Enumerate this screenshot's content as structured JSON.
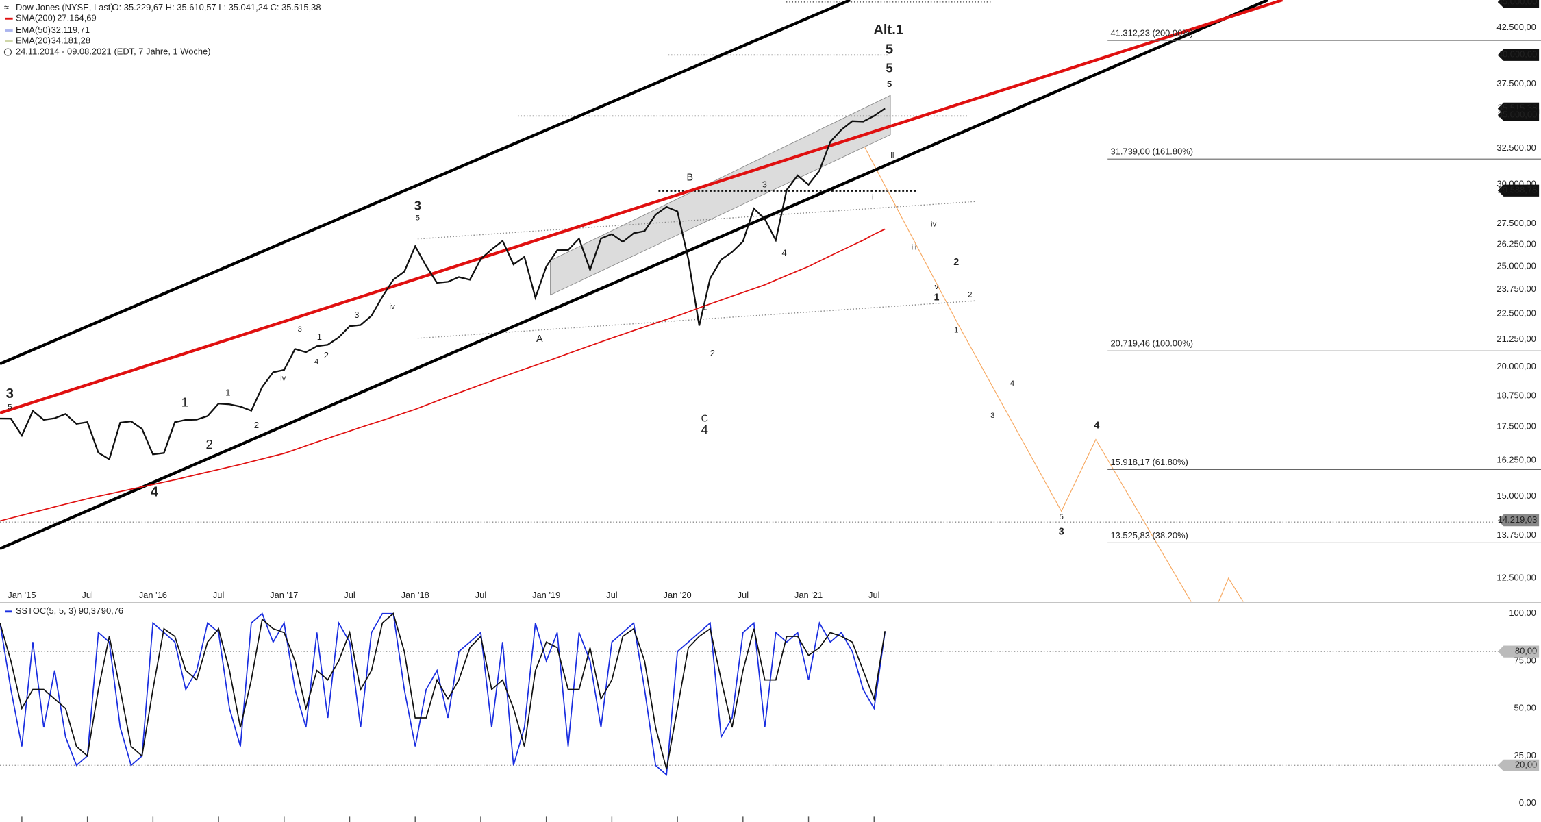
{
  "header": {
    "instrument": "Dow Jones (NYSE, Last)",
    "ohlc": "O: 35.229,67  H: 35.610,57  L: 35.041,24  C: 35.515,38",
    "range": "24.11.2014 - 09.08.2021",
    "info": "(EDT, 7 Jahre, 1 Woche)"
  },
  "chart_data": [
    {
      "type": "line",
      "log_scale": true,
      "x": [
        "2014-11",
        "2014-12",
        "2015-01",
        "2015-02",
        "2015-03",
        "2015-04",
        "2015-05",
        "2015-06",
        "2015-07",
        "2015-08",
        "2015-09",
        "2015-10",
        "2015-11",
        "2015-12",
        "2016-01",
        "2016-02",
        "2016-03",
        "2016-04",
        "2016-05",
        "2016-06",
        "2016-07",
        "2016-08",
        "2016-09",
        "2016-10",
        "2016-11",
        "2016-12",
        "2017-01",
        "2017-02",
        "2017-03",
        "2017-04",
        "2017-05",
        "2017-06",
        "2017-07",
        "2017-08",
        "2017-09",
        "2017-10",
        "2017-11",
        "2017-12",
        "2018-01",
        "2018-02",
        "2018-03",
        "2018-04",
        "2018-05",
        "2018-06",
        "2018-07",
        "2018-08",
        "2018-09",
        "2018-10",
        "2018-11",
        "2018-12",
        "2019-01",
        "2019-02",
        "2019-03",
        "2019-04",
        "2019-05",
        "2019-06",
        "2019-07",
        "2019-08",
        "2019-09",
        "2019-10",
        "2019-11",
        "2019-12",
        "2020-01",
        "2020-02",
        "2020-03",
        "2020-04",
        "2020-05",
        "2020-06",
        "2020-07",
        "2020-08",
        "2020-09",
        "2020-10",
        "2020-11",
        "2020-12",
        "2021-01",
        "2021-02",
        "2021-03",
        "2021-04",
        "2021-05",
        "2021-06",
        "2021-07",
        "2021-08"
      ],
      "series": [
        {
          "name": "Dow Jones (NYSE, Last)",
          "color": "#111111",
          "values": [
            17828,
            17823,
            17165,
            18133,
            17776,
            17841,
            18011,
            17620,
            17690,
            16528,
            16285,
            17664,
            17720,
            17425,
            16466,
            16517,
            17685,
            17774,
            17787,
            17930,
            18432,
            18401,
            18308,
            18142,
            19124,
            19763,
            19864,
            20812,
            20663,
            20941,
            21009,
            21350,
            21891,
            21948,
            22405,
            23377,
            24272,
            24719,
            26149,
            25029,
            24103,
            24163,
            24416,
            24271,
            25415,
            25965,
            26458,
            25116,
            25538,
            23327,
            24999,
            25916,
            25929,
            26593,
            24815,
            26600,
            26864,
            26403,
            26917,
            27046,
            28051,
            28538,
            28256,
            25409,
            21917,
            24346,
            25383,
            25813,
            26428,
            28430,
            27782,
            26502,
            29639,
            30606,
            29983,
            30932,
            32982,
            33875,
            34529,
            34503,
            34935,
            35515.38
          ]
        },
        {
          "name": "SMA(200)",
          "color": "#e01010",
          "last_label": "27.164,69",
          "values": [
            14200,
            14290,
            14380,
            14470,
            14560,
            14650,
            14740,
            14830,
            14920,
            15000,
            15080,
            15160,
            15240,
            15320,
            15400,
            15480,
            15560,
            15650,
            15740,
            15830,
            15920,
            16010,
            16100,
            16200,
            16300,
            16400,
            16500,
            16640,
            16780,
            16920,
            17060,
            17200,
            17340,
            17480,
            17620,
            17760,
            17900,
            18050,
            18200,
            18370,
            18540,
            18710,
            18880,
            19050,
            19220,
            19390,
            19560,
            19730,
            19900,
            20070,
            20240,
            20420,
            20600,
            20780,
            20960,
            21140,
            21320,
            21500,
            21680,
            21860,
            22040,
            22220,
            22400,
            22600,
            22800,
            23000,
            23200,
            23400,
            23600,
            23800,
            24000,
            24250,
            24500,
            24750,
            25000,
            25300,
            25600,
            25900,
            26200,
            26500,
            26850,
            27164.69
          ]
        }
      ],
      "legend_extra": [
        {
          "name": "EMA(50)",
          "label": "32.119,71",
          "color": "#aab4ee"
        },
        {
          "name": "EMA(20)",
          "label": "34.181,28",
          "color": "#cfd6a8"
        }
      ],
      "xlim": [
        "2014-11",
        "2026-03"
      ],
      "xticks": [
        {
          "value": "2015-01",
          "label": "Jan '15"
        },
        {
          "value": "2015-07",
          "label": "Jul"
        },
        {
          "value": "2016-01",
          "label": "Jan '16"
        },
        {
          "value": "2016-07",
          "label": "Jul"
        },
        {
          "value": "2017-01",
          "label": "Jan '17"
        },
        {
          "value": "2017-07",
          "label": "Jul"
        },
        {
          "value": "2018-01",
          "label": "Jan '18"
        },
        {
          "value": "2018-07",
          "label": "Jul"
        },
        {
          "value": "2019-01",
          "label": "Jan '19"
        },
        {
          "value": "2019-07",
          "label": "Jul"
        },
        {
          "value": "2020-01",
          "label": "Jan '20"
        },
        {
          "value": "2020-07",
          "label": "Jul"
        },
        {
          "value": "2021-01",
          "label": "Jan '21"
        },
        {
          "value": "2021-07",
          "label": "Jul"
        }
      ],
      "ylim": [
        11840,
        45000
      ],
      "yticks": [
        {
          "value": 42500,
          "label": "42.500,00"
        },
        {
          "value": 37500,
          "label": "37.500,00"
        },
        {
          "value": 32500,
          "label": "32.500,00"
        },
        {
          "value": 30000,
          "label": "30.000,00"
        },
        {
          "value": 27500,
          "label": "27.500,00"
        },
        {
          "value": 26250,
          "label": "26.250,00"
        },
        {
          "value": 25000,
          "label": "25.000,00"
        },
        {
          "value": 23750,
          "label": "23.750,00"
        },
        {
          "value": 22500,
          "label": "22.500,00"
        },
        {
          "value": 21250,
          "label": "21.250,00"
        },
        {
          "value": 20000,
          "label": "20.000,00"
        },
        {
          "value": 18750,
          "label": "18.750,00"
        },
        {
          "value": 17500,
          "label": "17.500,00"
        },
        {
          "value": 16250,
          "label": "16.250,00"
        },
        {
          "value": 15000,
          "label": "15.000,00"
        },
        {
          "value": 13750,
          "label": "13.750,00"
        },
        {
          "value": 12500,
          "label": "12.500,00"
        }
      ],
      "price_tags": [
        {
          "value": 45000,
          "label": "45.000,00",
          "color": "#111111"
        },
        {
          "value": 40000,
          "label": "40.000,00",
          "color": "#111111"
        },
        {
          "value": 35515.38,
          "label": "35.515,38",
          "color": "#111111"
        },
        {
          "value": 35000,
          "label": "35.000,00",
          "color": "#111111"
        },
        {
          "value": 29588.78,
          "label": "29.588,78",
          "color": "#111111"
        },
        {
          "value": 14219.03,
          "label": "14.219,03",
          "color": "#888888"
        }
      ],
      "levels": [
        {
          "value": 41312.23,
          "label": "41.312,23 (200.00%)"
        },
        {
          "value": 31739,
          "label": "31.739,00 (161.80%)"
        },
        {
          "value": 20719.46,
          "label": "20.719,46 (100.00%)"
        },
        {
          "value": 15918.17,
          "label": "15.918,17 (61.80%)"
        },
        {
          "value": 13525.83,
          "label": "13.525,83 (38.20%)"
        }
      ],
      "annotations": [
        {
          "text": "3",
          "color": "#1a2ecc"
        },
        {
          "text": "5",
          "color": "#1a8a1a"
        },
        {
          "text": "4",
          "color": "#1a2ecc"
        },
        {
          "text": "1",
          "color": "#e020c0"
        },
        {
          "text": "2",
          "color": "#e020c0"
        },
        {
          "text": "1",
          "color": "#1a8a1a"
        },
        {
          "text": "2",
          "color": "#1a8a1a"
        },
        {
          "text": "3",
          "color": "#1a8a1a"
        },
        {
          "text": "iv",
          "color": "#111111"
        },
        {
          "text": "1",
          "color": "#111111"
        },
        {
          "text": "2",
          "color": "#111111"
        },
        {
          "text": "4",
          "color": "#1a8a1a"
        },
        {
          "text": "3",
          "color": "#111111"
        },
        {
          "text": "iv",
          "color": "#1a2ecc"
        },
        {
          "text": "3",
          "color": "#e020c0"
        },
        {
          "text": "5",
          "color": "#111111"
        },
        {
          "text": "A",
          "color": "#111111"
        },
        {
          "text": "B",
          "color": "#111111"
        },
        {
          "text": "C",
          "color": "#111111"
        },
        {
          "text": "4",
          "color": "#e020c0"
        },
        {
          "text": "1",
          "color": "#111111"
        },
        {
          "text": "2",
          "color": "#111111"
        },
        {
          "text": "3",
          "color": "#111111"
        },
        {
          "text": "4",
          "color": "#111111"
        },
        {
          "text": "Alt.1",
          "color": "#111111"
        },
        {
          "text": "5",
          "color": "#1a2ecc"
        },
        {
          "text": "5",
          "color": "#e020c0"
        },
        {
          "text": "5",
          "color": "#111111"
        },
        {
          "text": "ii",
          "color": "#6677dd"
        },
        {
          "text": "i",
          "color": "#6677dd"
        },
        {
          "text": "iv",
          "color": "#6677dd"
        },
        {
          "text": "iii",
          "color": "#6677dd"
        },
        {
          "text": "v",
          "color": "#6677dd"
        },
        {
          "text": "2",
          "color": "#f0900a"
        },
        {
          "text": "1",
          "color": "#f0900a"
        },
        {
          "text": "2",
          "color": "#111111"
        },
        {
          "text": "1",
          "color": "#111111"
        },
        {
          "text": "4",
          "color": "#111111"
        },
        {
          "text": "3",
          "color": "#111111"
        },
        {
          "text": "5",
          "color": "#111111"
        },
        {
          "text": "4",
          "color": "#f0900a"
        },
        {
          "text": "3",
          "color": "#f0900a"
        }
      ]
    },
    {
      "type": "line",
      "series": [
        {
          "name": "SSTOC(5, 5, 3)",
          "color": "#1a2ee0",
          "last_label": "90,37",
          "values": [
            95,
            60,
            30,
            85,
            40,
            70,
            35,
            20,
            25,
            90,
            85,
            40,
            20,
            25,
            95,
            90,
            85,
            60,
            70,
            95,
            90,
            50,
            30,
            95,
            100,
            85,
            95,
            60,
            40,
            90,
            45,
            95,
            85,
            40,
            90,
            100,
            100,
            60,
            30,
            60,
            70,
            45,
            80,
            85,
            90,
            40,
            85,
            20,
            40,
            95,
            75,
            90,
            30,
            90,
            75,
            40,
            85,
            90,
            95,
            60,
            20,
            15,
            80,
            85,
            90,
            95,
            35,
            45,
            90,
            95,
            40,
            90,
            85,
            90,
            65,
            95,
            85,
            90,
            80,
            60,
            50,
            90.37
          ]
        },
        {
          "color": "#111111",
          "last_label": "90,76",
          "values": [
            95,
            75,
            50,
            60,
            60,
            55,
            50,
            30,
            25,
            60,
            88,
            60,
            30,
            25,
            60,
            92,
            88,
            70,
            65,
            85,
            92,
            70,
            40,
            65,
            97,
            92,
            90,
            75,
            50,
            70,
            65,
            75,
            90,
            60,
            70,
            95,
            100,
            80,
            45,
            45,
            65,
            55,
            65,
            82,
            88,
            60,
            65,
            50,
            30,
            70,
            85,
            82,
            60,
            60,
            82,
            55,
            65,
            88,
            92,
            75,
            40,
            18,
            50,
            82,
            88,
            92,
            65,
            40,
            70,
            92,
            65,
            65,
            88,
            88,
            78,
            82,
            90,
            88,
            85,
            70,
            55,
            90.76
          ]
        }
      ],
      "ylim": [
        0,
        100
      ],
      "yticks": [
        {
          "value": 100,
          "label": "100,00"
        },
        {
          "value": 75,
          "label": "75,00"
        },
        {
          "value": 50,
          "label": "50,00"
        },
        {
          "value": 25,
          "label": "25,00"
        },
        {
          "value": 0,
          "label": "0,00"
        }
      ],
      "price_tags": [
        {
          "value": 80,
          "label": "80,00",
          "color": "#bbbbbb"
        },
        {
          "value": 20,
          "label": "20,00",
          "color": "#bbbbbb"
        }
      ]
    }
  ]
}
